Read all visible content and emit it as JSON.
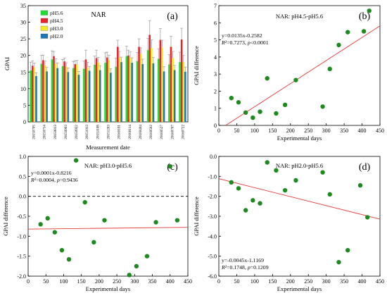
{
  "chart_data": [
    {
      "panel": "(a)",
      "type": "bar",
      "title": "NAR",
      "xlabel": "Measurement date",
      "ylabel": "GPAI",
      "ylim": [
        0,
        35
      ],
      "yticks": [
        0,
        5,
        10,
        15,
        20,
        25,
        30,
        35
      ],
      "legend_position": "top-left",
      "categories": [
        "20150705",
        "20150714",
        "20150813",
        "20150903",
        "20150922",
        "20151013",
        "20151108",
        "20151203",
        "20160101",
        "20160114",
        "20160404",
        "20160502",
        "20160527",
        "20160707",
        "20160722"
      ],
      "series": [
        {
          "name": "pH5.6",
          "color": "#23dc32",
          "values": [
            15.5,
            17.5,
            18.8,
            16.8,
            16.2,
            16.0,
            17.2,
            17.8,
            16.6,
            19.8,
            18.3,
            21.6,
            19.0,
            17.3,
            18.0
          ],
          "errors": [
            2.5,
            2.5,
            2.6,
            2.0,
            2.0,
            2.3,
            2.6,
            3.0,
            2.6,
            3.0,
            2.6,
            3.5,
            3.0,
            3.0,
            3.0
          ]
        },
        {
          "name": "pH4.5",
          "color": "#e8232d",
          "values": [
            16.9,
            18.6,
            19.8,
            18.2,
            17.4,
            18.8,
            19.2,
            19.4,
            22.6,
            20.0,
            22.6,
            26.2,
            24.7,
            22.6,
            24.8
          ],
          "errors": [
            1.5,
            1.5,
            1.4,
            1.0,
            1.0,
            2.8,
            2.4,
            1.6,
            2.0,
            1.6,
            2.4,
            4.3,
            3.4,
            3.2,
            3.4
          ]
        },
        {
          "name": "pH3.0",
          "color": "#f7e82a",
          "values": [
            16.5,
            17.0,
            17.5,
            16.6,
            17.2,
            16.4,
            17.9,
            18.6,
            19.4,
            19.4,
            20.5,
            22.2,
            22.4,
            19.2,
            18.0
          ],
          "errors": [
            1.2,
            1.3,
            1.5,
            1.2,
            1.3,
            1.5,
            1.5,
            1.5,
            1.8,
            1.7,
            1.8,
            2.5,
            2.2,
            2.0,
            2.0
          ]
        },
        {
          "name": "pH2.0",
          "color": "#1f76b4",
          "values": [
            13.8,
            15.2,
            16.2,
            15.0,
            14.2,
            15.4,
            15.6,
            14.8,
            18.0,
            17.8,
            17.4,
            17.6,
            15.2,
            15.6,
            15.1
          ],
          "errors": [
            1.0,
            1.2,
            1.5,
            1.2,
            1.0,
            1.3,
            1.3,
            1.2,
            1.5,
            1.5,
            1.5,
            1.8,
            1.4,
            1.4,
            1.4
          ]
        }
      ]
    },
    {
      "panel": "(b)",
      "type": "scatter",
      "title": "NAR: pH4.5-pH5.6",
      "xlabel": "Experimental days",
      "ylabel": "GPAI difference",
      "xlim": [
        0,
        450
      ],
      "ylim": [
        0,
        7
      ],
      "xticks": [
        0,
        50,
        100,
        150,
        200,
        250,
        300,
        350,
        400,
        450
      ],
      "yticks": [
        0,
        1,
        2,
        3,
        4,
        5,
        6,
        7
      ],
      "equation": "y=0.0135x-0.2582",
      "r2": "R²=0.7273, p<0.0001",
      "fit": {
        "slope": 0.0135,
        "intercept": -0.2582,
        "x_range": [
          19,
          450
        ]
      },
      "points": [
        [
          35,
          1.6
        ],
        [
          55,
          1.35
        ],
        [
          75,
          0.75
        ],
        [
          95,
          0.45
        ],
        [
          115,
          0.8
        ],
        [
          135,
          2.75
        ],
        [
          160,
          0.7
        ],
        [
          185,
          1.2
        ],
        [
          215,
          2.65
        ],
        [
          290,
          1.1
        ],
        [
          310,
          3.3
        ],
        [
          335,
          4.7
        ],
        [
          360,
          5.45
        ],
        [
          405,
          5.5
        ],
        [
          420,
          6.7
        ]
      ]
    },
    {
      "panel": "(c)",
      "type": "scatter",
      "title": "NAR: pH3.0-pH5.6",
      "xlabel": "Experimental days",
      "ylabel": "GPAI difference",
      "xlim": [
        0,
        450
      ],
      "ylim": [
        -2,
        1
      ],
      "xticks": [
        0,
        50,
        100,
        150,
        200,
        250,
        300,
        350,
        400,
        450
      ],
      "yticks": [
        -2.0,
        -1.5,
        -1.0,
        -0.5,
        0.0,
        0.5,
        1.0
      ],
      "equation": "y=0.0001x-0.8216",
      "r2": "R²=0.0004, p=0.9436",
      "fit": {
        "slope": 0.0001,
        "intercept": -0.8216,
        "x_range": [
          0,
          450
        ]
      },
      "zero_line": true,
      "points": [
        [
          35,
          -0.7
        ],
        [
          55,
          -0.55
        ],
        [
          75,
          -0.9
        ],
        [
          95,
          -1.35
        ],
        [
          115,
          -1.58
        ],
        [
          135,
          0.9
        ],
        [
          160,
          -0.15
        ],
        [
          185,
          -1.15
        ],
        [
          215,
          -0.6
        ],
        [
          285,
          -1.97
        ],
        [
          305,
          -1.75
        ],
        [
          335,
          -1.5
        ],
        [
          360,
          -0.65
        ],
        [
          400,
          0.75
        ],
        [
          420,
          -0.6
        ]
      ]
    },
    {
      "panel": "(d)",
      "type": "scatter",
      "title": "NAR: pH2.0-pH5.6",
      "xlabel": "Experimental days",
      "ylabel": "GPAI difference",
      "xlim": [
        0,
        450
      ],
      "ylim": [
        -6,
        0
      ],
      "xticks": [
        0,
        50,
        100,
        150,
        200,
        250,
        300,
        350,
        400,
        450
      ],
      "yticks": [
        -6.0,
        -5.0,
        -4.0,
        -3.0,
        -2.0,
        -1.0,
        0.0
      ],
      "equation": "y=-0.0045x-1.1169",
      "r2": "R²=0.1748, p=0.1209",
      "fit": {
        "slope": -0.0045,
        "intercept": -1.1169,
        "x_range": [
          0,
          450
        ]
      },
      "points": [
        [
          35,
          -1.3
        ],
        [
          55,
          -1.6
        ],
        [
          75,
          -2.7
        ],
        [
          95,
          -2.2
        ],
        [
          115,
          -2.35
        ],
        [
          135,
          -0.3
        ],
        [
          160,
          -0.7
        ],
        [
          185,
          -1.7
        ],
        [
          215,
          -1.2
        ],
        [
          290,
          -0.8
        ],
        [
          310,
          -1.9
        ],
        [
          335,
          -5.3
        ],
        [
          360,
          -4.7
        ],
        [
          395,
          -1.45
        ],
        [
          415,
          -3.05
        ]
      ]
    }
  ]
}
